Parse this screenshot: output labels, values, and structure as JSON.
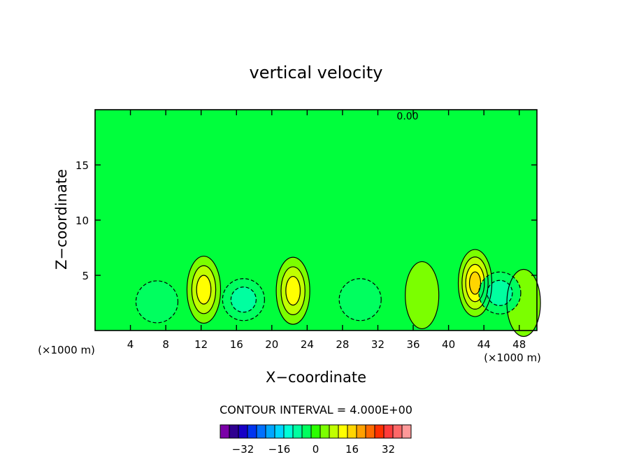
{
  "chart_data": {
    "type": "heatmap",
    "title": "vertical velocity",
    "xlabel": "X−coordinate",
    "ylabel": "Z−coordinate",
    "x_unit": "(×1000 m)",
    "xlim": [
      0,
      50
    ],
    "ylim": [
      0,
      20
    ],
    "x_ticks": [
      4,
      8,
      12,
      16,
      20,
      24,
      28,
      32,
      36,
      40,
      44,
      48
    ],
    "y_ticks": [
      5,
      10,
      15
    ],
    "contour_interval_label": "CONTOUR INTERVAL = 4.000E+00",
    "contour_interval": 4,
    "zero_contour_label": "0.00",
    "background_level": 0,
    "colorbar": {
      "ticks": [
        -32,
        -16,
        0,
        16,
        32
      ],
      "tick_labels": [
        "−32",
        "−16",
        "0",
        "16",
        "32"
      ],
      "colors": [
        "#7b00a8",
        "#2f0090",
        "#1700c6",
        "#0034f0",
        "#0070ff",
        "#00a6ff",
        "#00d6ff",
        "#00ffd8",
        "#00ffa0",
        "#00ff5f",
        "#2bff00",
        "#7bff00",
        "#c0ff00",
        "#ffff00",
        "#ffd500",
        "#ffa000",
        "#ff6a00",
        "#ff3000",
        "#ff3b3b",
        "#ff6868",
        "#ff9999"
      ]
    },
    "features": [
      {
        "kind": "updraft",
        "x": 12.3,
        "z": 3.7,
        "peak": 12
      },
      {
        "kind": "updraft",
        "x": 22.4,
        "z": 3.6,
        "peak": 12
      },
      {
        "kind": "updraft",
        "x": 43.0,
        "z": 4.3,
        "peak": 16
      },
      {
        "kind": "updraft",
        "x": 37.0,
        "z": 3.2,
        "peak": 4
      },
      {
        "kind": "updraft",
        "x": 48.5,
        "z": 2.5,
        "peak": 4
      },
      {
        "kind": "downdraft",
        "x": 7.0,
        "z": 2.6,
        "peak": -4
      },
      {
        "kind": "downdraft",
        "x": 16.8,
        "z": 2.8,
        "peak": -8
      },
      {
        "kind": "downdraft",
        "x": 30.0,
        "z": 2.8,
        "peak": -4
      },
      {
        "kind": "downdraft",
        "x": 45.8,
        "z": 3.4,
        "peak": -8
      }
    ]
  }
}
